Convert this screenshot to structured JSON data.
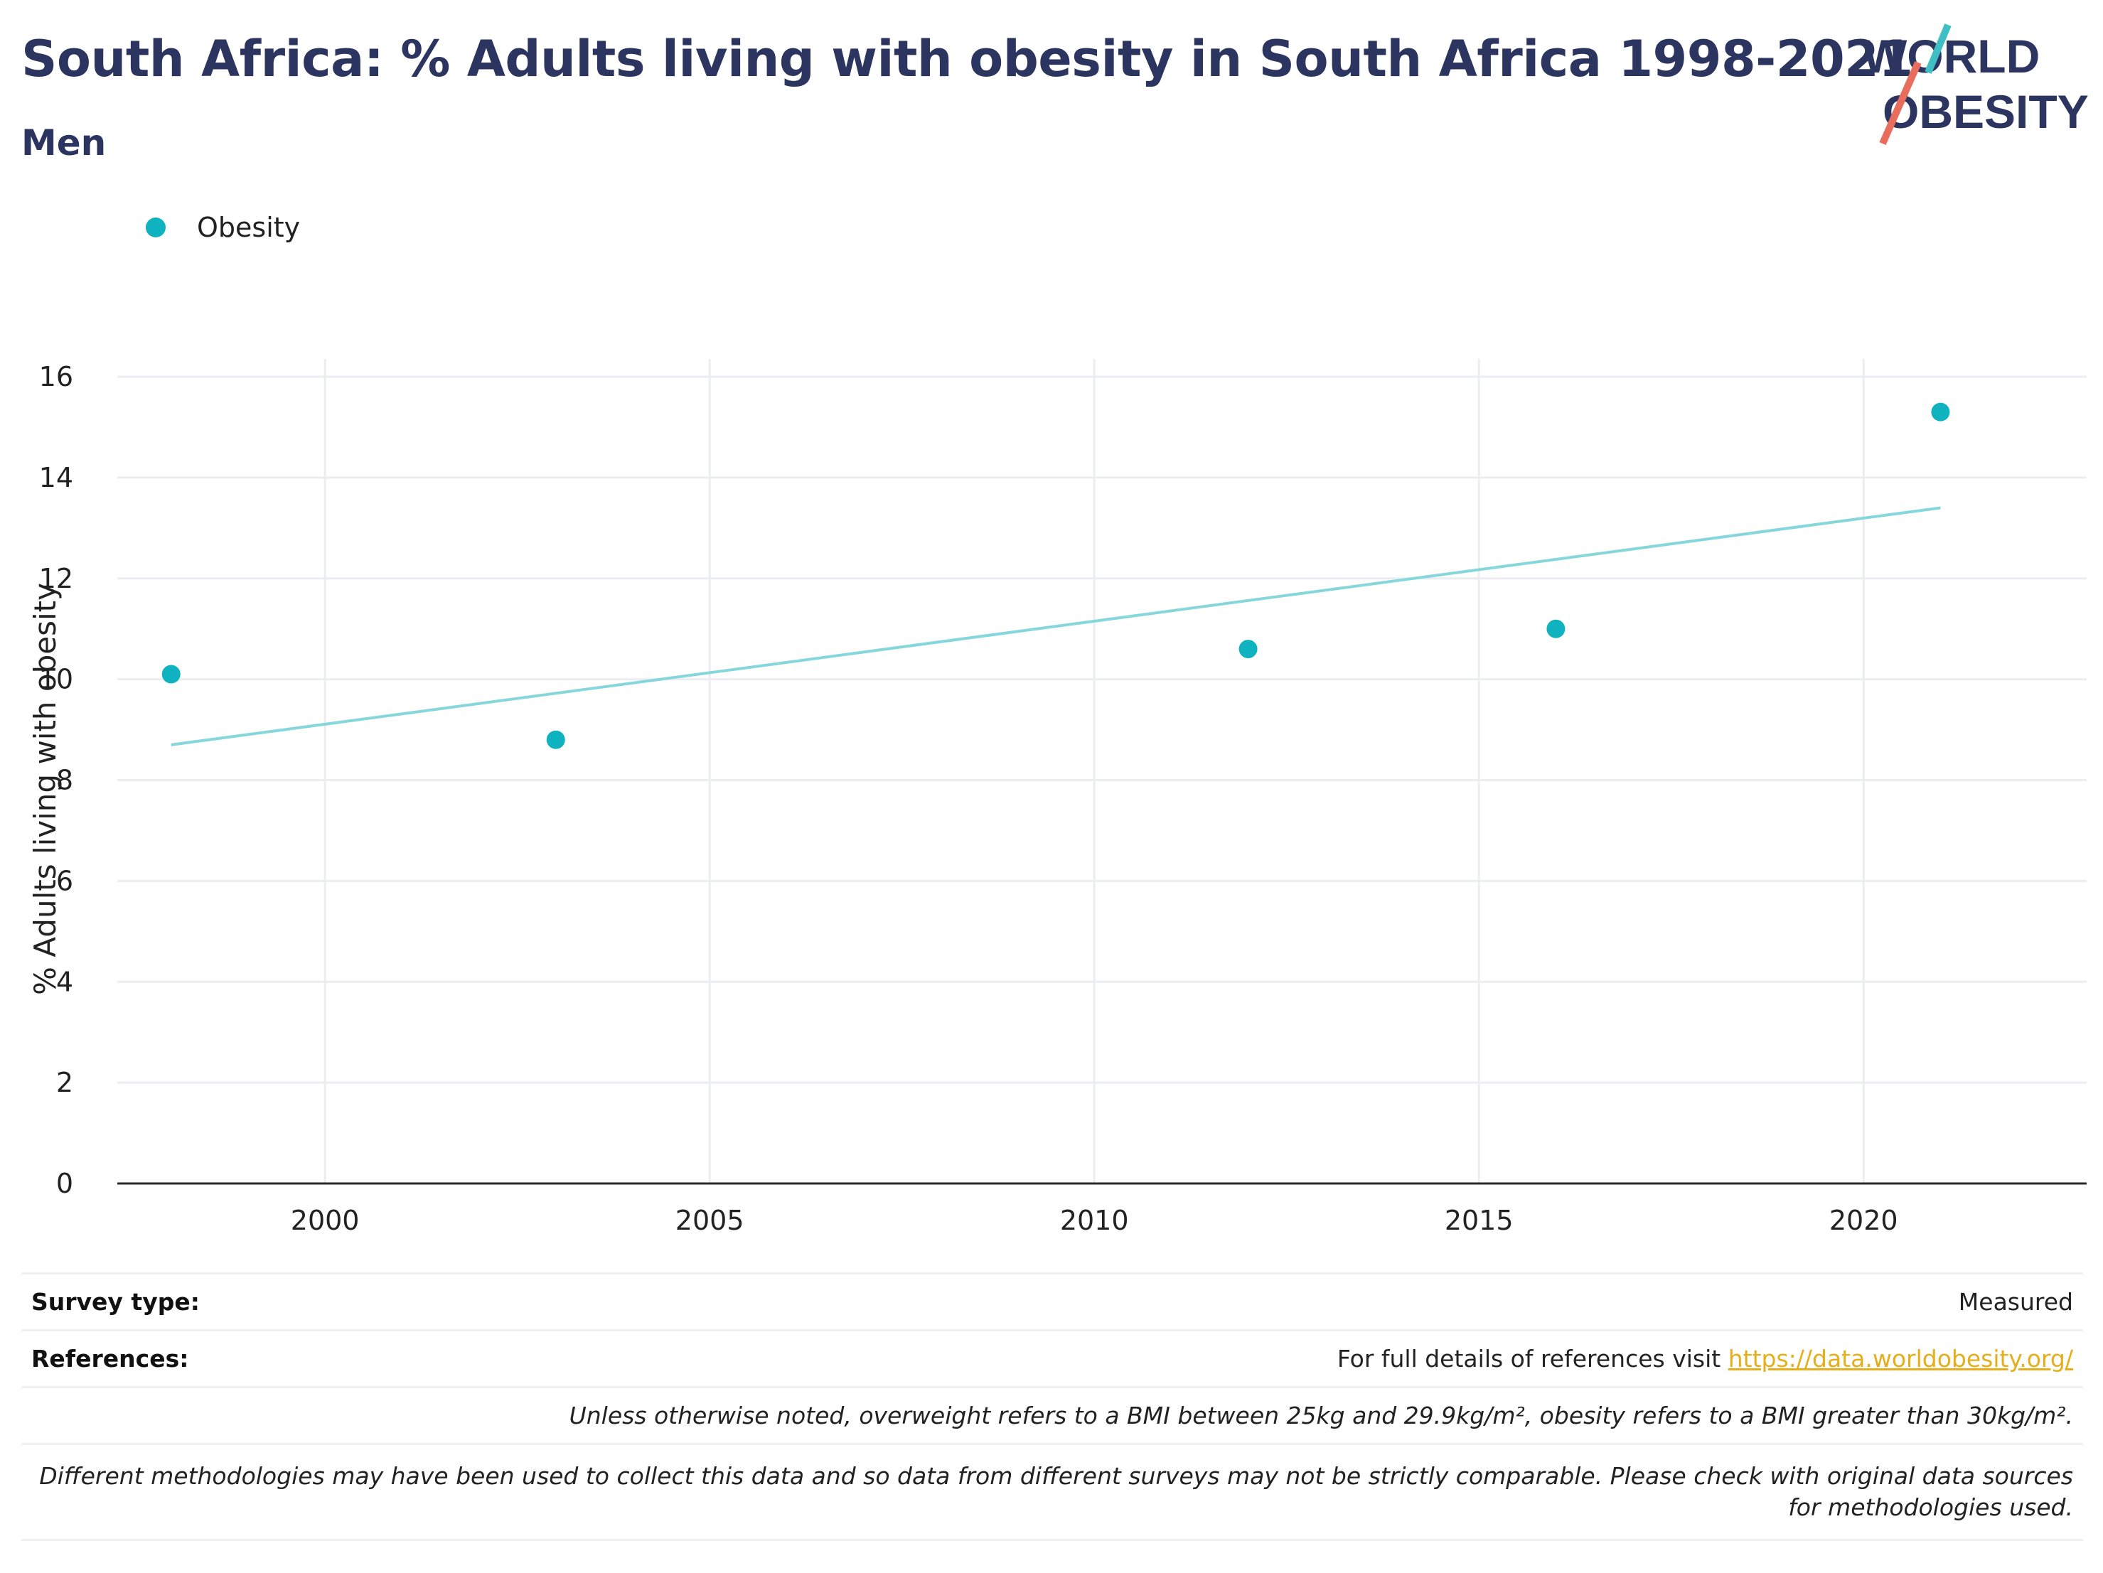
{
  "header": {
    "title": "South Africa: % Adults living with obesity in South Africa 1998-2021",
    "subtitle": "Men"
  },
  "logo": {
    "line1": "WORLD",
    "line2": "OBESITY"
  },
  "legend": {
    "items": [
      {
        "label": "Obesity",
        "color": "#0fb3bf"
      }
    ]
  },
  "chart_data": {
    "type": "scatter",
    "title": "South Africa: % Adults living with obesity in South Africa 1998-2021",
    "subtitle": "Men",
    "ylabel": "% Adults living with obesity",
    "xlabel": "",
    "xlim": [
      1997.3,
      2022.9
    ],
    "ylim": [
      0,
      16
    ],
    "x_ticks": [
      2000,
      2005,
      2010,
      2015,
      2020
    ],
    "y_ticks": [
      0,
      2,
      4,
      6,
      8,
      10,
      12,
      14,
      16
    ],
    "grid": true,
    "legend_position": "top-left",
    "series": [
      {
        "name": "Obesity",
        "color": "#0fb3bf",
        "points": [
          {
            "x": 1998,
            "y": 10.1
          },
          {
            "x": 2003,
            "y": 8.8
          },
          {
            "x": 2012,
            "y": 10.6
          },
          {
            "x": 2016,
            "y": 11.0
          },
          {
            "x": 2021,
            "y": 15.3
          }
        ]
      }
    ],
    "trendline": {
      "color": "#86d7dc",
      "x": [
        1998,
        2021
      ],
      "y": [
        8.7,
        13.4
      ]
    }
  },
  "footer": {
    "survey_type_label": "Survey type:",
    "survey_type_value": "Measured",
    "references_label": "References:",
    "references_text": "For full details of references visit ",
    "references_link": "https://data.worldobesity.org/",
    "note1": "Unless otherwise noted, overweight refers to a BMI between 25kg and 29.9kg/m², obesity refers to a BMI greater than 30kg/m².",
    "note2": "Different methodologies may have been used to collect this data and so data from different surveys may not be strictly comparable. Please check with original data sources for methodologies used."
  }
}
